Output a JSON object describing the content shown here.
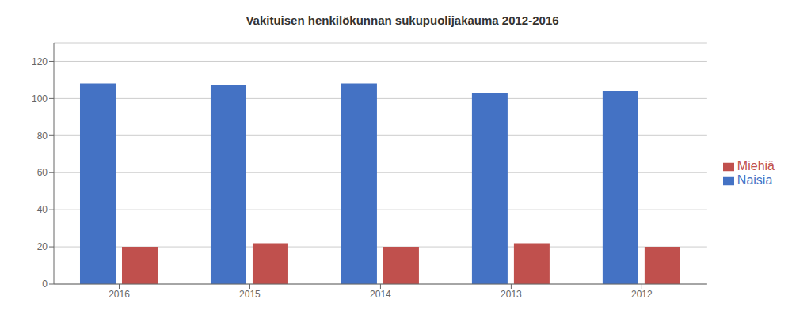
{
  "chart_data": {
    "type": "bar",
    "title": "Vakituisen henkilökunnan sukupuolijakauma 2012-2016",
    "categories": [
      "2016",
      "2015",
      "2014",
      "2013",
      "2012"
    ],
    "series": [
      {
        "name": "Naisia",
        "color": "#4472C4",
        "values": [
          108,
          107,
          108,
          103,
          104
        ]
      },
      {
        "name": "Miehiä",
        "color": "#C0504D",
        "values": [
          20,
          22,
          20,
          22,
          20
        ]
      }
    ],
    "ylim": [
      0,
      130
    ],
    "yticks": [
      0,
      20,
      40,
      60,
      80,
      100,
      120
    ],
    "grid": true,
    "legend": "right"
  }
}
